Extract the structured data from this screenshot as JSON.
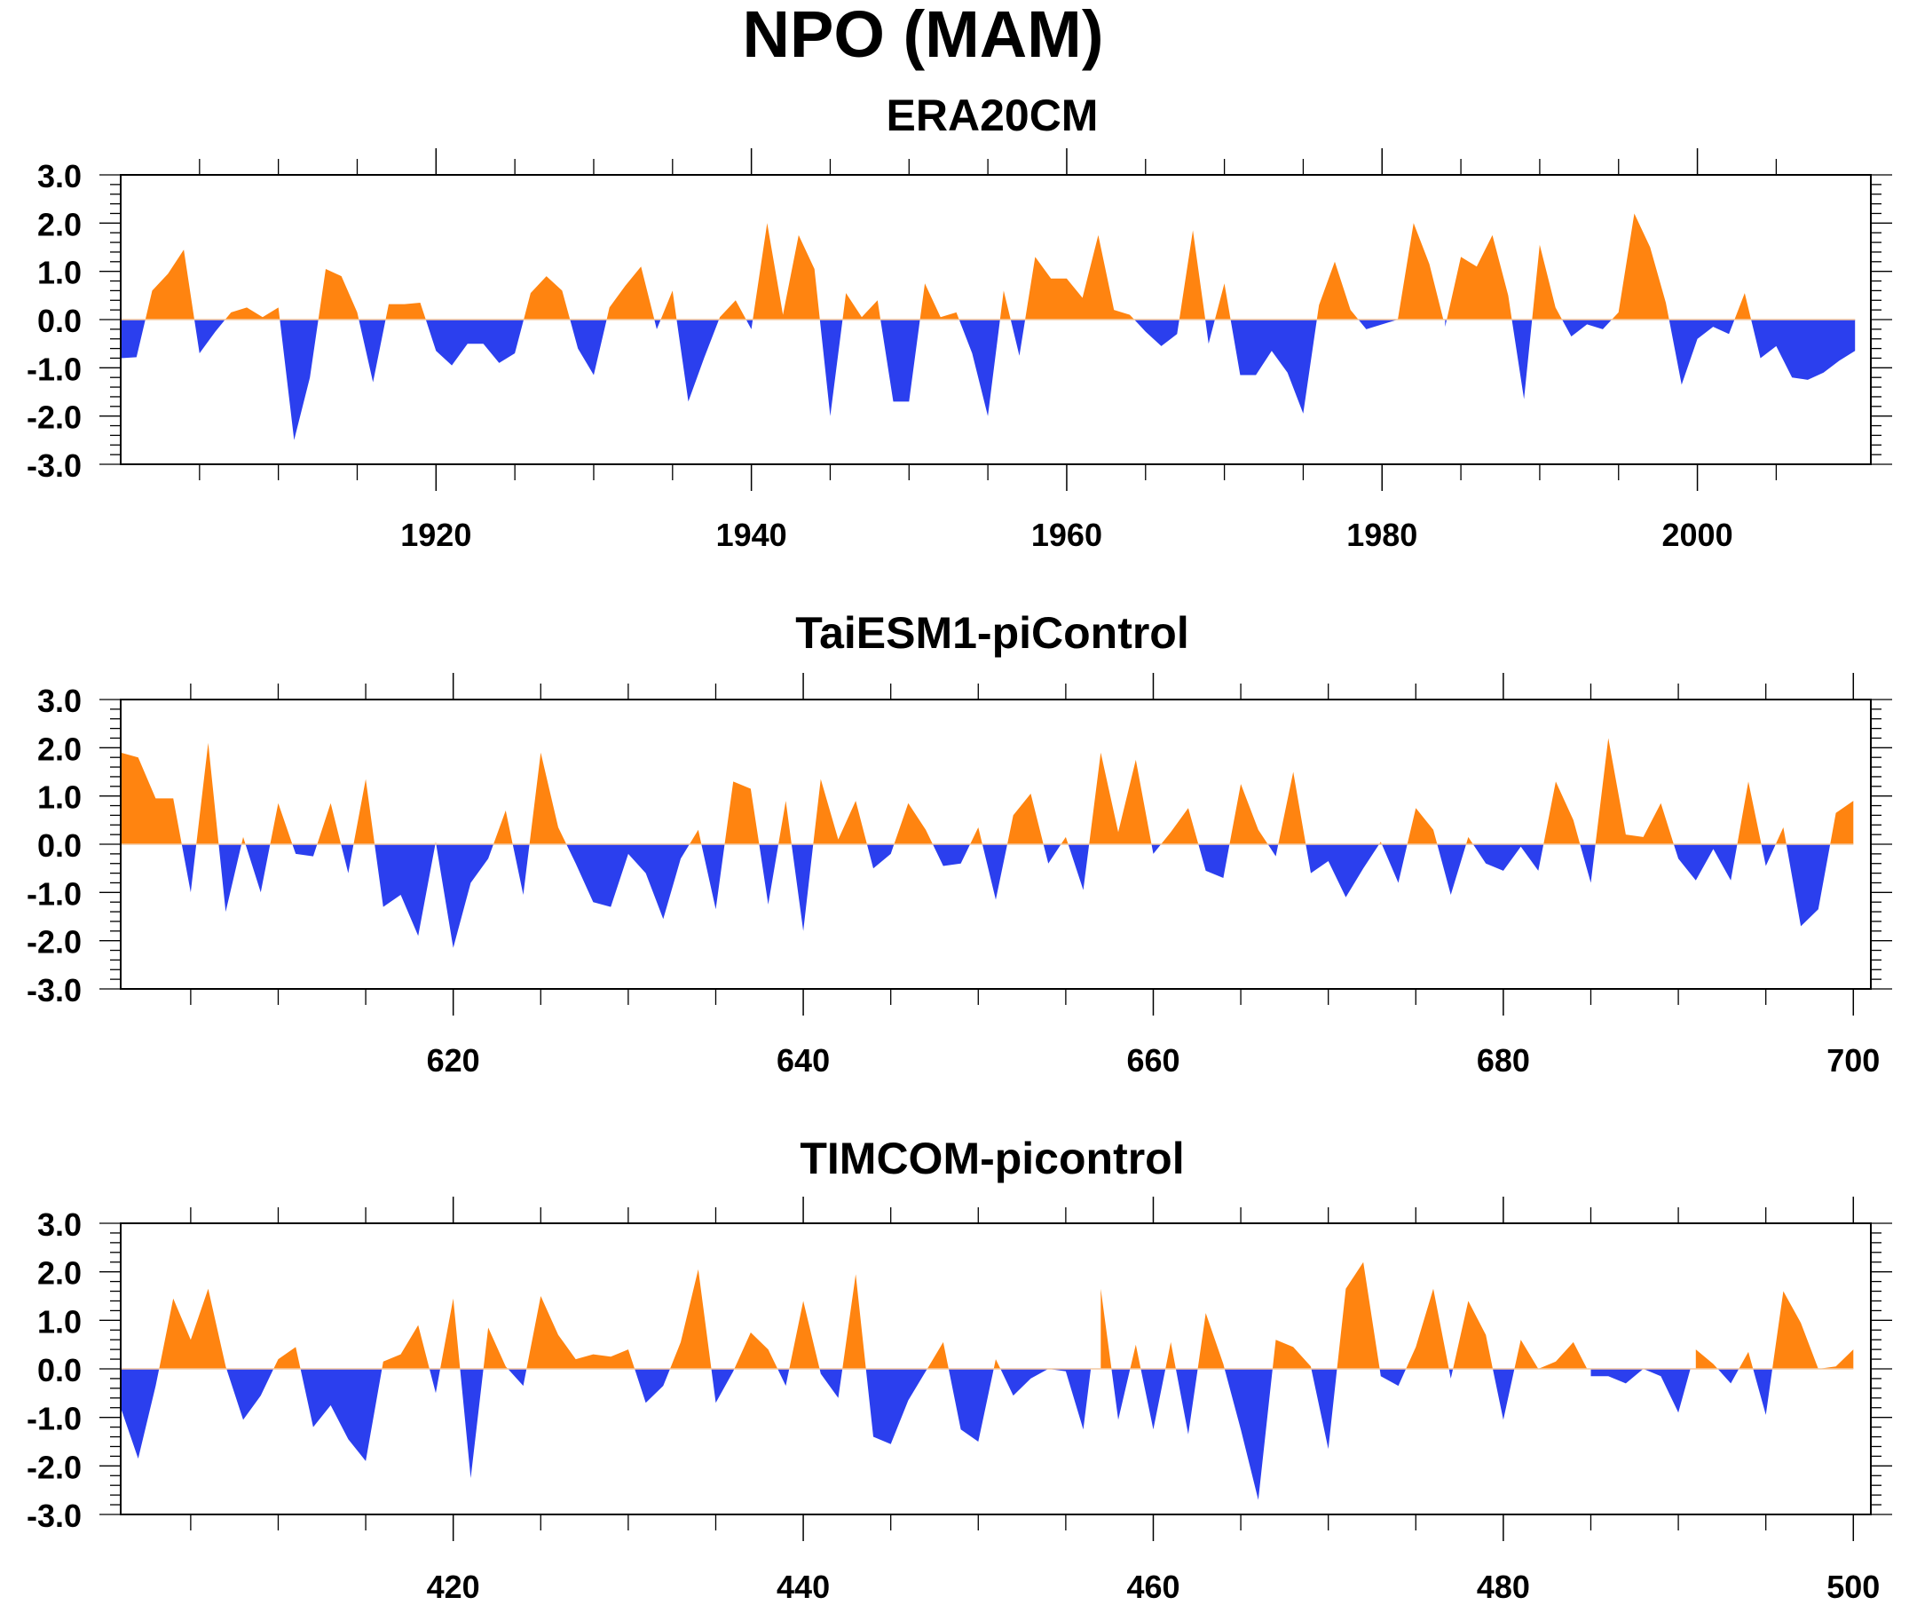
{
  "figure": {
    "title": "NPO (MAM)",
    "colors": {
      "positive": "#FF8410",
      "negative": "#2B3FEE"
    }
  },
  "chart_data": [
    {
      "type": "area",
      "title": "ERA20CM",
      "xlabel": "",
      "ylabel": "",
      "xlim": [
        1900,
        2011
      ],
      "ylim": [
        -3.0,
        3.0
      ],
      "yticks": [
        3.0,
        2.0,
        1.0,
        0.0,
        -1.0,
        -2.0,
        -3.0
      ],
      "ytick_labels": [
        "3.0",
        "2.0",
        "1.0",
        "0.0",
        "-1.0",
        "-2.0",
        "-3.0"
      ],
      "xticks_major": [
        1920,
        1940,
        1960,
        1980,
        2000
      ],
      "xtick_labels": [
        "1920",
        "1940",
        "1960",
        "1980",
        "2000"
      ],
      "xticks_minor": [
        1905,
        1910,
        1915,
        1925,
        1930,
        1935,
        1945,
        1950,
        1955,
        1965,
        1970,
        1975,
        1985,
        1990,
        1995,
        2005
      ],
      "x_start": 1900,
      "x_step": 1,
      "fill": "above/below zero",
      "values": [
        -0.8,
        -0.78,
        0.6,
        0.95,
        1.45,
        -0.7,
        -0.25,
        0.15,
        0.25,
        0.05,
        0.25,
        -2.5,
        -1.2,
        1.05,
        0.9,
        0.15,
        -1.3,
        0.32,
        0.32,
        0.35,
        -0.65,
        -0.95,
        -0.5,
        -0.5,
        -0.9,
        -0.7,
        0.55,
        0.9,
        0.6,
        -0.6,
        -1.15,
        0.25,
        0.7,
        1.1,
        -0.2,
        0.6,
        -1.7,
        -0.8,
        0.05,
        0.4,
        -0.2,
        2.0,
        0.1,
        1.75,
        1.05,
        -2.0,
        0.55,
        0.05,
        0.4,
        -1.7,
        -1.7,
        0.75,
        0.05,
        0.15,
        -0.7,
        -2.0,
        0.6,
        -0.75,
        1.3,
        0.85,
        0.85,
        0.45,
        1.75,
        0.2,
        0.1,
        -0.25,
        -0.55,
        -0.3,
        1.85,
        -0.5,
        0.75,
        -1.15,
        -1.15,
        -0.65,
        -1.1,
        -1.95,
        0.3,
        1.2,
        0.2,
        -0.2,
        -0.1,
        0.0,
        2.0,
        1.15,
        -0.15,
        1.3,
        1.1,
        1.75,
        0.5,
        -1.65,
        1.55,
        0.25,
        -0.35,
        -0.1,
        -0.2,
        0.15,
        2.2,
        1.5,
        0.35,
        -1.35,
        -0.4,
        -0.15,
        -0.3,
        0.55,
        -0.8,
        -0.55,
        -1.2,
        -1.25,
        -1.1,
        -0.85,
        -0.65
      ]
    },
    {
      "type": "area",
      "title": "TaiESM1-piControl",
      "xlabel": "",
      "ylabel": "",
      "xlim": [
        601,
        701
      ],
      "ylim": [
        -3.0,
        3.0
      ],
      "yticks": [
        3.0,
        2.0,
        1.0,
        0.0,
        -1.0,
        -2.0,
        -3.0
      ],
      "ytick_labels": [
        "3.0",
        "2.0",
        "1.0",
        "0.0",
        "-1.0",
        "-2.0",
        "-3.0"
      ],
      "xticks_major": [
        620,
        640,
        660,
        680,
        700
      ],
      "xtick_labels": [
        "620",
        "640",
        "660",
        "680",
        "700"
      ],
      "xticks_minor": [
        605,
        610,
        615,
        625,
        630,
        635,
        645,
        650,
        655,
        665,
        670,
        675,
        685,
        690,
        695
      ],
      "x_start": 601,
      "x_step": 1,
      "fill": "above/below zero",
      "values": [
        1.9,
        1.8,
        0.95,
        0.95,
        -1.0,
        2.1,
        -1.4,
        0.15,
        -1.0,
        0.85,
        -0.2,
        -0.25,
        0.85,
        -0.6,
        1.35,
        -1.3,
        -1.05,
        -1.9,
        0.05,
        -2.15,
        -0.8,
        -0.3,
        0.7,
        -1.05,
        1.9,
        0.35,
        -0.4,
        -1.2,
        -1.3,
        -0.2,
        -0.6,
        -1.55,
        -0.3,
        0.3,
        -1.35,
        1.3,
        1.15,
        -1.25,
        0.9,
        -1.8,
        1.35,
        0.1,
        0.9,
        -0.5,
        -0.2,
        0.85,
        0.3,
        -0.45,
        -0.4,
        0.35,
        -1.15,
        0.6,
        1.05,
        -0.4,
        0.15,
        -0.95,
        1.9,
        0.25,
        1.75,
        -0.2,
        0.25,
        0.75,
        -0.55,
        -0.7,
        1.25,
        0.3,
        -0.25,
        1.5,
        -0.6,
        -0.35,
        -1.1,
        -0.5,
        0.05,
        -0.8,
        0.75,
        0.3,
        -1.05,
        0.15,
        -0.4,
        -0.55,
        -0.05,
        -0.55,
        1.3,
        0.5,
        -0.8,
        2.2,
        0.2,
        0.15,
        0.85,
        -0.3,
        -0.75,
        -0.1,
        -0.75,
        1.3,
        -0.45,
        0.35,
        -1.7,
        -1.35,
        0.65,
        0.9
      ]
    },
    {
      "type": "area",
      "title": "TIMCOM-picontrol",
      "xlabel": "",
      "ylabel": "",
      "xlim": [
        401,
        501
      ],
      "ylim": [
        -3.0,
        3.0
      ],
      "yticks": [
        3.0,
        2.0,
        1.0,
        0.0,
        -1.0,
        -2.0,
        -3.0
      ],
      "ytick_labels": [
        "3.0",
        "2.0",
        "1.0",
        "0.0",
        "-1.0",
        "-2.0",
        "-3.0"
      ],
      "xticks_major": [
        420,
        440,
        460,
        480,
        500
      ],
      "xtick_labels": [
        "420",
        "440",
        "460",
        "480",
        "500"
      ],
      "xticks_minor": [
        405,
        410,
        415,
        425,
        430,
        435,
        445,
        450,
        455,
        465,
        470,
        475,
        485,
        490,
        495
      ],
      "x_start": 401,
      "x_step": 1,
      "fill": "above/below zero",
      "values": [
        -0.8,
        -1.85,
        -0.35,
        1.45,
        0.6,
        1.65,
        0.05,
        -1.05,
        -0.55,
        0.2,
        0.45,
        -1.2,
        -0.75,
        -1.45,
        -1.9,
        0.15,
        0.3,
        0.9,
        -0.5,
        1.45,
        -2.25,
        0.85,
        0.05,
        -0.35,
        1.5,
        0.7,
        0.2,
        0.3,
        0.25,
        0.4,
        -0.7,
        -0.35,
        0.55,
        2.05,
        -0.7,
        -0.05,
        0.75,
        0.4,
        -0.35,
        1.4,
        -0.1,
        -0.6,
        1.95,
        -1.4,
        -1.55,
        -0.65,
        -0.05,
        0.55,
        -1.25,
        -1.5,
        0.2,
        -0.55,
        -0.2,
        0.0,
        -0.05,
        -1.25,
        1.65,
        -1.05,
        0.5,
        -1.25,
        0.55,
        -1.35,
        1.15,
        0.1,
        -1.25,
        -2.7,
        0.6,
        0.45,
        0.05,
        -1.65,
        1.65,
        2.2,
        -0.15,
        -0.35,
        0.45,
        1.65,
        -0.2,
        1.4,
        0.7,
        -1.05,
        0.6,
        0.0,
        0.15,
        0.55,
        -0.15,
        -0.15,
        -0.3,
        0.0,
        -0.15,
        -0.9,
        0.4,
        0.1,
        -0.3,
        0.35,
        -0.95,
        1.6,
        0.95,
        0.0,
        0.05,
        0.4
      ]
    }
  ]
}
